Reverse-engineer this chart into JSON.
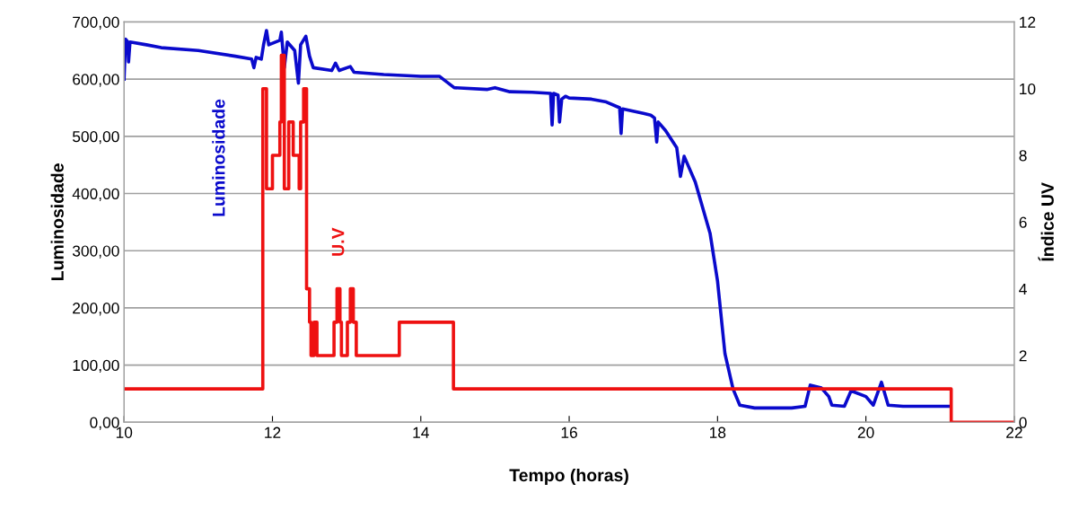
{
  "chart_data": {
    "type": "line",
    "xlabel": "Tempo (horas)",
    "ylabel": "Luminosidade",
    "y2label": "Índice UV",
    "xlim": [
      10,
      22
    ],
    "xticks": [
      10,
      12,
      14,
      16,
      18,
      20,
      22
    ],
    "ylim": [
      0,
      700
    ],
    "yticks": [
      {
        "value": 0,
        "label": "0,00"
      },
      {
        "value": 100,
        "label": "100,00"
      },
      {
        "value": 200,
        "label": "200,00"
      },
      {
        "value": 300,
        "label": "300,00"
      },
      {
        "value": 400,
        "label": "400,00"
      },
      {
        "value": 500,
        "label": "500,00"
      },
      {
        "value": 600,
        "label": "600,00"
      },
      {
        "value": 700,
        "label": "700,00"
      }
    ],
    "y2lim": [
      0,
      12
    ],
    "y2ticks": [
      0,
      2,
      4,
      6,
      8,
      10,
      12
    ],
    "grid": "y",
    "legend": false,
    "marker": "none",
    "line_style": "solid",
    "series": [
      {
        "name": "Luminosidade",
        "color": "#0a0acc",
        "x": [
          10.0,
          10.02,
          10.05,
          10.06,
          10.08,
          10.3,
          10.5,
          11.0,
          11.5,
          11.72,
          11.75,
          11.78,
          11.85,
          11.88,
          11.92,
          11.95,
          12.1,
          12.12,
          12.16,
          12.2,
          12.3,
          12.35,
          12.38,
          12.45,
          12.5,
          12.55,
          12.8,
          12.85,
          12.9,
          13.05,
          13.1,
          13.5,
          14.0,
          14.25,
          14.3,
          14.45,
          14.9,
          15.0,
          15.2,
          15.5,
          15.75,
          15.77,
          15.79,
          15.85,
          15.87,
          15.9,
          15.95,
          16.0,
          16.3,
          16.5,
          16.68,
          16.7,
          16.72,
          17.0,
          17.1,
          17.15,
          17.18,
          17.2,
          17.3,
          17.45,
          17.5,
          17.55,
          17.7,
          17.9,
          18.0,
          18.1,
          18.21,
          18.3,
          18.5,
          19.0,
          19.18,
          19.25,
          19.4,
          19.5,
          19.54,
          19.71,
          19.8,
          20.0,
          20.1,
          20.21,
          20.3,
          20.5,
          21.12
        ],
        "values": [
          600,
          670,
          665,
          630,
          665,
          660,
          655,
          650,
          640,
          635,
          620,
          638,
          635,
          660,
          685,
          660,
          668,
          682,
          620,
          665,
          650,
          593,
          660,
          675,
          640,
          620,
          615,
          628,
          615,
          622,
          612,
          608,
          605,
          605,
          600,
          585,
          582,
          585,
          578,
          577,
          575,
          520,
          575,
          572,
          525,
          565,
          570,
          567,
          565,
          560,
          550,
          505,
          548,
          540,
          537,
          532,
          490,
          525,
          510,
          480,
          430,
          465,
          420,
          330,
          247,
          120,
          58,
          30,
          25,
          25,
          28,
          65,
          60,
          45,
          30,
          28,
          55,
          45,
          30,
          70,
          30,
          28,
          28
        ]
      },
      {
        "name": "U.V",
        "type": "step",
        "axis": "y2",
        "color": "#ee1111",
        "x": [
          10.0,
          11.87,
          11.92,
          12.0,
          12.1,
          12.12,
          12.16,
          12.22,
          12.28,
          12.36,
          12.38,
          12.42,
          12.46,
          12.5,
          12.52,
          12.56,
          12.6,
          12.65,
          12.83,
          12.87,
          12.91,
          12.93,
          13.01,
          13.05,
          13.09,
          13.13,
          13.71,
          14.44,
          21.15,
          22.0
        ],
        "values": [
          1,
          10,
          7,
          8,
          9,
          11,
          7,
          9,
          8,
          7,
          9,
          10,
          4,
          3,
          2,
          3,
          2,
          2,
          3,
          4,
          3,
          2,
          3,
          4,
          3,
          2,
          3,
          1,
          0,
          0
        ]
      }
    ]
  }
}
